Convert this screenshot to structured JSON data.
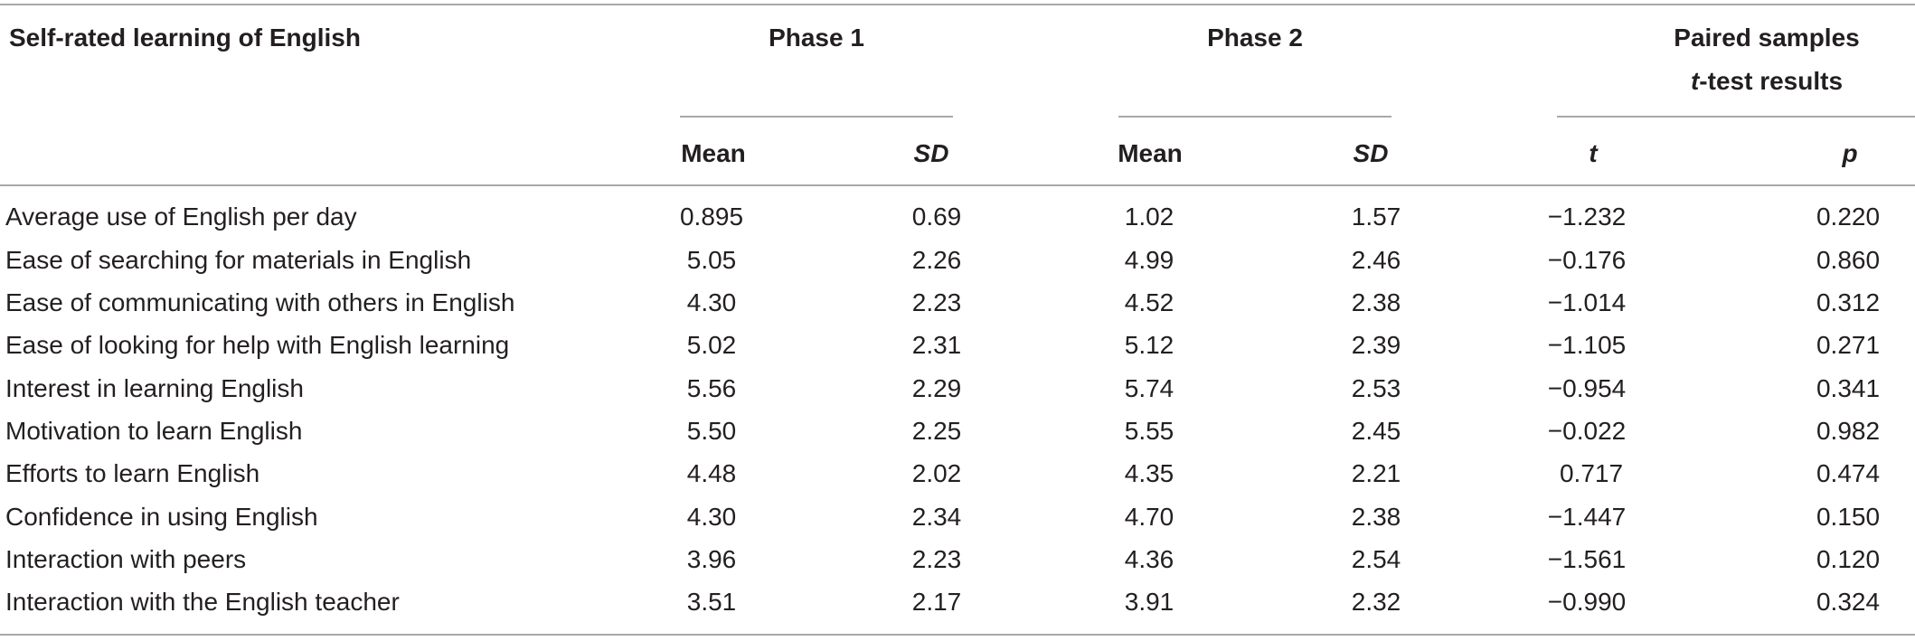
{
  "table": {
    "header": {
      "row_label": "Self-rated learning of English",
      "phase1": "Phase 1",
      "phase2": "Phase 2",
      "ttest_line1": "Paired samples",
      "ttest_line2_italic": "t",
      "ttest_line2_rest": "-test results",
      "mean": "Mean",
      "sd": "SD",
      "t": "t",
      "p": "p"
    },
    "rows": [
      {
        "label": "Average use of English per day",
        "mean1": "0.895",
        "sd1": "0.69",
        "mean2": "1.02",
        "sd2": "1.57",
        "t": "−1.232",
        "p": "0.220"
      },
      {
        "label": "Ease of searching for materials in English",
        "mean1": "5.05",
        "sd1": "2.26",
        "mean2": "4.99",
        "sd2": "2.46",
        "t": "−0.176",
        "p": "0.860"
      },
      {
        "label": "Ease of communicating with others in English",
        "mean1": "4.30",
        "sd1": "2.23",
        "mean2": "4.52",
        "sd2": "2.38",
        "t": "−1.014",
        "p": "0.312"
      },
      {
        "label": "Ease of looking for help with English learning",
        "mean1": "5.02",
        "sd1": "2.31",
        "mean2": "5.12",
        "sd2": "2.39",
        "t": "−1.105",
        "p": "0.271"
      },
      {
        "label": "Interest in learning English",
        "mean1": "5.56",
        "sd1": "2.29",
        "mean2": "5.74",
        "sd2": "2.53",
        "t": "−0.954",
        "p": "0.341"
      },
      {
        "label": "Motivation to learn English",
        "mean1": "5.50",
        "sd1": "2.25",
        "mean2": "5.55",
        "sd2": "2.45",
        "t": "−0.022",
        "p": "0.982"
      },
      {
        "label": "Efforts to learn English",
        "mean1": "4.48",
        "sd1": "2.02",
        "mean2": "4.35",
        "sd2": "2.21",
        "t": "0.717",
        "p": "0.474"
      },
      {
        "label": "Confidence in using English",
        "mean1": "4.30",
        "sd1": "2.34",
        "mean2": "4.70",
        "sd2": "2.38",
        "t": "−1.447",
        "p": "0.150"
      },
      {
        "label": "Interaction with peers",
        "mean1": "3.96",
        "sd1": "2.23",
        "mean2": "4.36",
        "sd2": "2.54",
        "t": "−1.561",
        "p": "0.120"
      },
      {
        "label": "Interaction with the English teacher",
        "mean1": "3.51",
        "sd1": "2.17",
        "mean2": "3.91",
        "sd2": "2.32",
        "t": "−0.990",
        "p": "0.324"
      }
    ]
  }
}
